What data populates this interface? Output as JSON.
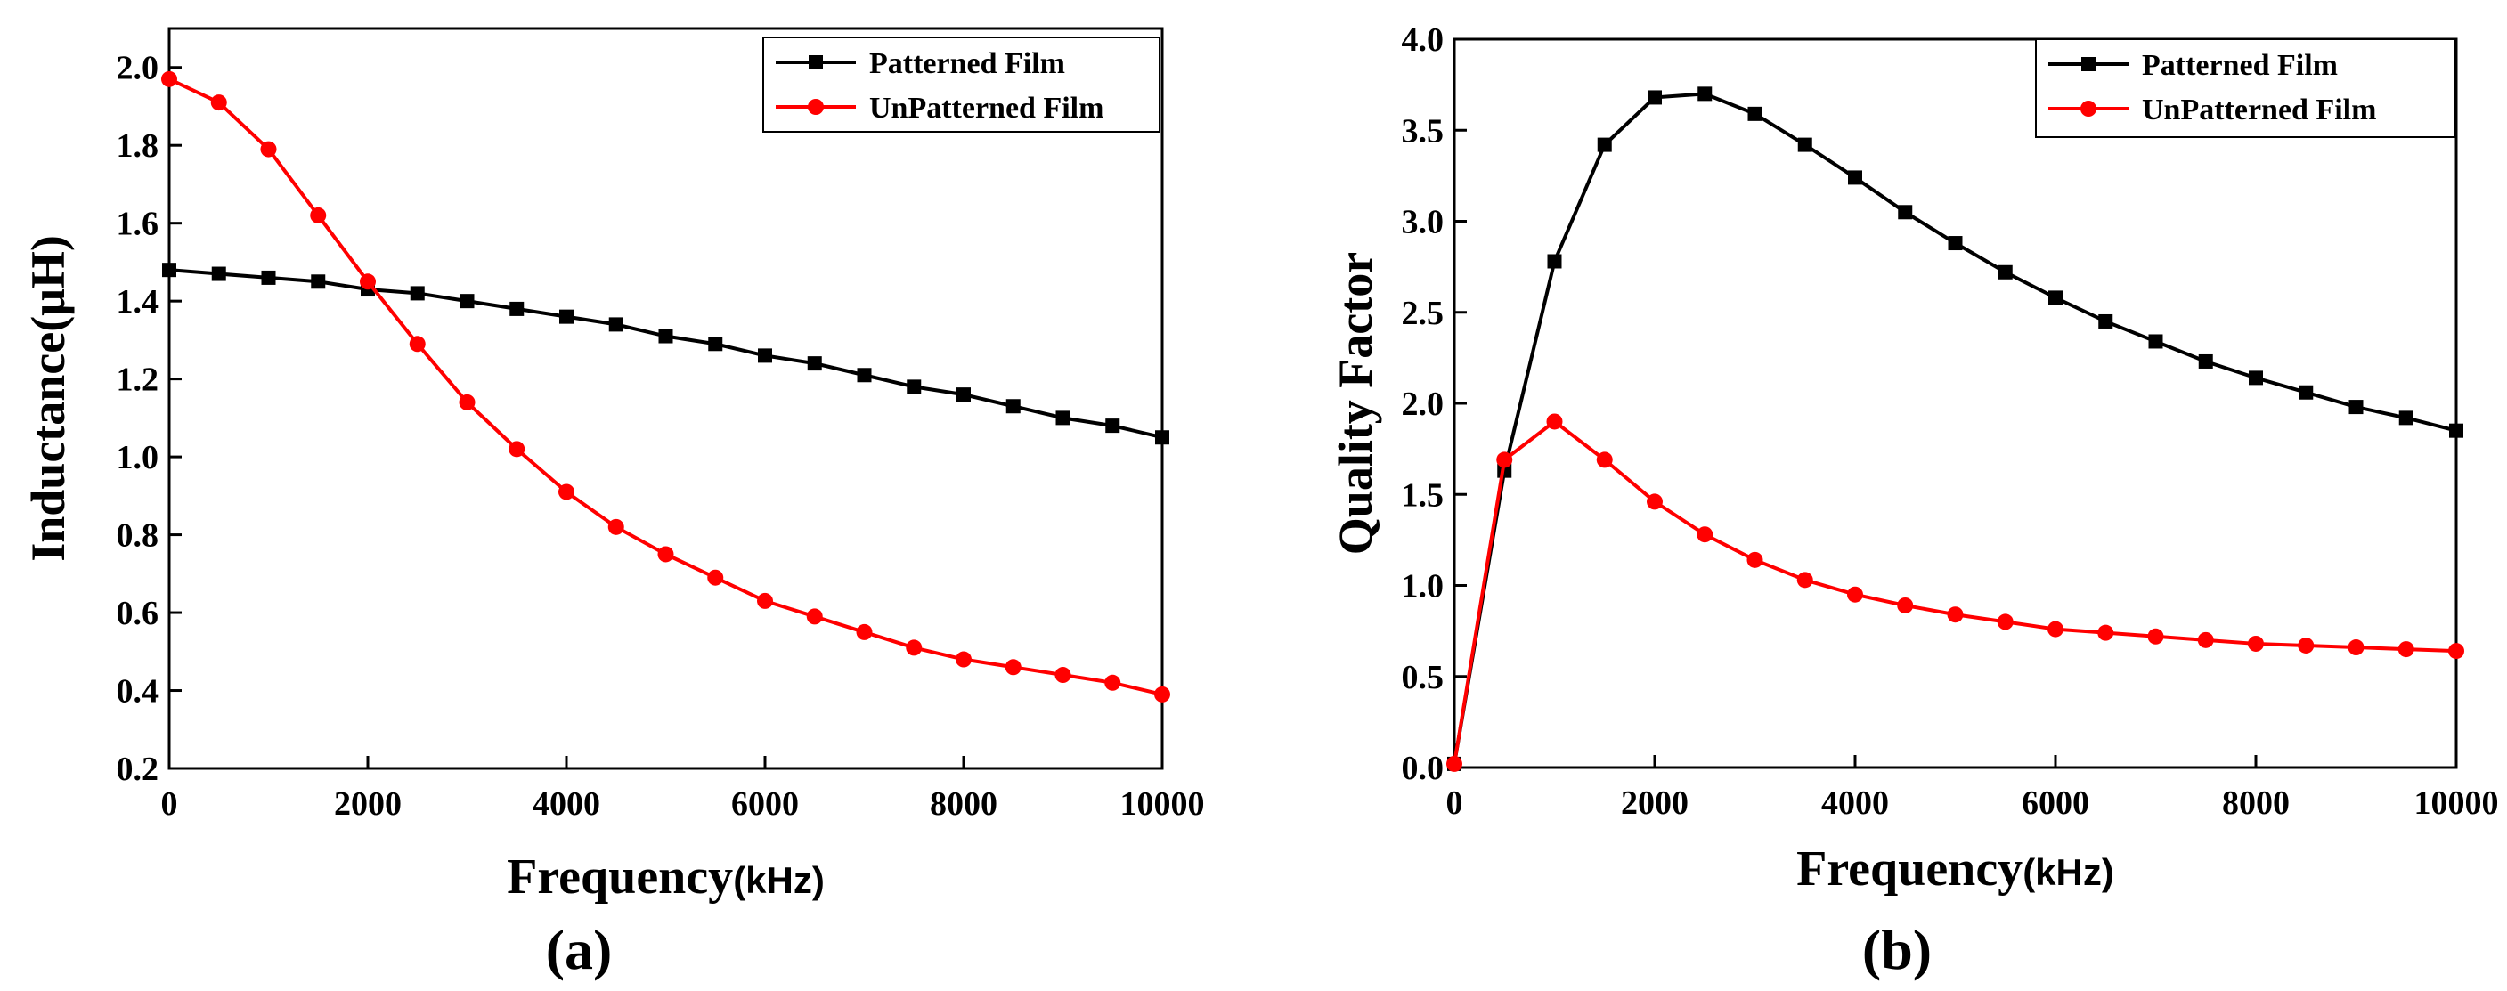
{
  "chart_data": [
    {
      "type": "line",
      "panel_label": "(a)",
      "xlabel": "Frequency",
      "xunit": "(kHz)",
      "ylabel": "Inductance(μH)",
      "xlim": [
        0,
        10000
      ],
      "ylim": [
        0.2,
        2.1
      ],
      "xticks": [
        "0",
        "2000",
        "4000",
        "6000",
        "8000",
        "10000"
      ],
      "xtick_values": [
        0,
        2000,
        4000,
        6000,
        8000,
        10000
      ],
      "yticks": [
        "0.2",
        "0.4",
        "0.6",
        "0.8",
        "1.0",
        "1.2",
        "1.4",
        "1.6",
        "1.8",
        "2.0"
      ],
      "ytick_values": [
        0.2,
        0.4,
        0.6,
        0.8,
        1.0,
        1.2,
        1.4,
        1.6,
        1.8,
        2.0
      ],
      "grid": false,
      "legend_position": "top-right",
      "x": [
        0,
        500,
        1000,
        1500,
        2000,
        2500,
        3000,
        3500,
        4000,
        4500,
        5000,
        5500,
        6000,
        6500,
        7000,
        7500,
        8000,
        8500,
        9000,
        9500,
        10000
      ],
      "series": [
        {
          "name": "Patterned Film",
          "color": "#000000",
          "marker": "square",
          "values": [
            1.48,
            1.47,
            1.46,
            1.45,
            1.43,
            1.42,
            1.4,
            1.38,
            1.36,
            1.34,
            1.31,
            1.29,
            1.26,
            1.24,
            1.21,
            1.18,
            1.16,
            1.13,
            1.1,
            1.08,
            1.05
          ]
        },
        {
          "name": "UnPatterned Film",
          "color": "#ff0000",
          "marker": "circle",
          "values": [
            1.97,
            1.91,
            1.79,
            1.62,
            1.45,
            1.29,
            1.14,
            1.02,
            0.91,
            0.82,
            0.75,
            0.69,
            0.63,
            0.59,
            0.55,
            0.51,
            0.48,
            0.46,
            0.44,
            0.42,
            0.39
          ]
        }
      ]
    },
    {
      "type": "line",
      "panel_label": "(b)",
      "xlabel": "Frequency",
      "xunit": "(kHz)",
      "ylabel": "Quality Factor",
      "xlim": [
        0,
        10000
      ],
      "ylim": [
        0,
        4.0
      ],
      "xticks": [
        "0",
        "2000",
        "4000",
        "6000",
        "8000",
        "10000"
      ],
      "xtick_values": [
        0,
        2000,
        4000,
        6000,
        8000,
        10000
      ],
      "yticks": [
        "0.0",
        "0.5",
        "1.0",
        "1.5",
        "2.0",
        "2.5",
        "3.0",
        "3.5",
        "4.0"
      ],
      "ytick_values": [
        0,
        0.5,
        1.0,
        1.5,
        2.0,
        2.5,
        3.0,
        3.5,
        4.0
      ],
      "grid": false,
      "legend_position": "top-right",
      "x": [
        0,
        500,
        1000,
        1500,
        2000,
        2500,
        3000,
        3500,
        4000,
        4500,
        5000,
        5500,
        6000,
        6500,
        7000,
        7500,
        8000,
        8500,
        9000,
        9500,
        10000
      ],
      "series": [
        {
          "name": "Patterned Film",
          "color": "#000000",
          "marker": "square",
          "values": [
            0.02,
            1.63,
            2.78,
            3.42,
            3.68,
            3.7,
            3.59,
            3.42,
            3.24,
            3.05,
            2.88,
            2.72,
            2.58,
            2.45,
            2.34,
            2.23,
            2.14,
            2.06,
            1.98,
            1.92,
            1.85
          ]
        },
        {
          "name": "UnPatterned Film",
          "color": "#ff0000",
          "marker": "circle",
          "values": [
            0.02,
            1.69,
            1.9,
            1.69,
            1.46,
            1.28,
            1.14,
            1.03,
            0.95,
            0.89,
            0.84,
            0.8,
            0.76,
            0.74,
            0.72,
            0.7,
            0.68,
            0.67,
            0.66,
            0.65,
            0.64
          ]
        }
      ]
    }
  ]
}
